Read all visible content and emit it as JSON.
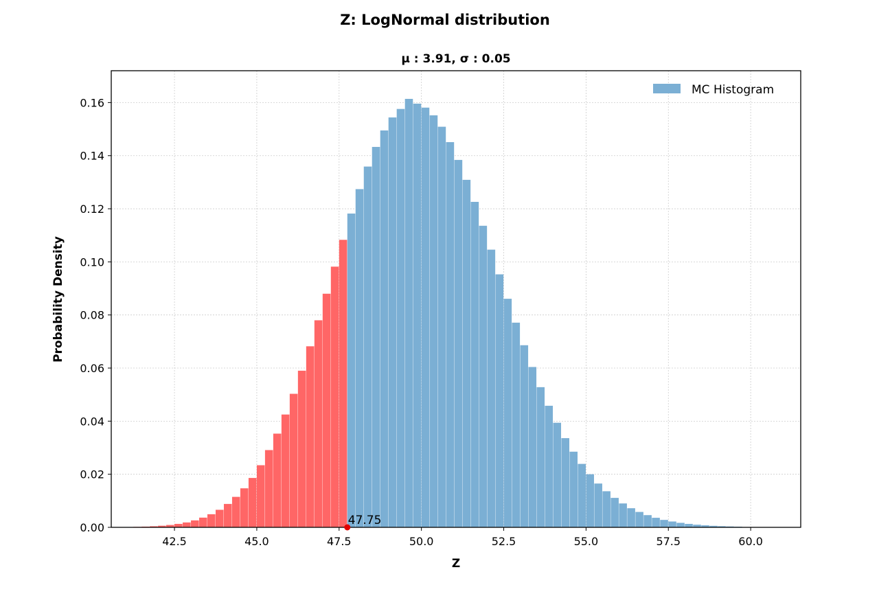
{
  "chart_data": {
    "type": "bar",
    "title": "Z: LogNormal distribution",
    "subtitle": "μ : 3.91, σ : 0.05",
    "xlabel": "Z",
    "ylabel": "Probability Density",
    "xlim": [
      40.58,
      61.52
    ],
    "ylim": [
      0,
      0.172
    ],
    "xticks": [
      "42.5",
      "45.0",
      "47.5",
      "50.0",
      "52.5",
      "55.0",
      "57.5",
      "60.0"
    ],
    "yticks": [
      "0.00",
      "0.02",
      "0.04",
      "0.06",
      "0.08",
      "0.10",
      "0.12",
      "0.14",
      "0.16"
    ],
    "grid": true,
    "legend": {
      "placement": "top-right",
      "entries": [
        "MC Histogram"
      ]
    },
    "colors": {
      "histogram": "#7bafd4",
      "highlight": "#ff6666",
      "marker": "#e00000"
    },
    "bin_start": 41.25,
    "bin_width": 0.25,
    "threshold": 47.75,
    "threshold_label": "47.75",
    "values": [
      0.00018,
      0.00027,
      0.00041,
      0.00061,
      0.00089,
      0.0013,
      0.00184,
      0.00262,
      0.00366,
      0.00494,
      0.00661,
      0.00882,
      0.01148,
      0.0147,
      0.0186,
      0.0234,
      0.0291,
      0.0353,
      0.0425,
      0.0503,
      0.059,
      0.0682,
      0.078,
      0.088,
      0.0982,
      0.1083,
      0.1182,
      0.1274,
      0.1359,
      0.1433,
      0.1495,
      0.1544,
      0.1576,
      0.1614,
      0.1596,
      0.1581,
      0.1552,
      0.1509,
      0.1451,
      0.1384,
      0.1309,
      0.1226,
      0.1136,
      0.1046,
      0.0953,
      0.0861,
      0.0771,
      0.0686,
      0.0604,
      0.0528,
      0.0458,
      0.0394,
      0.0336,
      0.0285,
      0.0239,
      0.02,
      0.0165,
      0.0136,
      0.0111,
      0.009,
      0.0072,
      0.0058,
      0.0046,
      0.0036,
      0.0028,
      0.0022,
      0.0017,
      0.0013,
      0.001,
      0.00077,
      0.00058,
      0.00044,
      0.00033,
      0.00024
    ]
  }
}
